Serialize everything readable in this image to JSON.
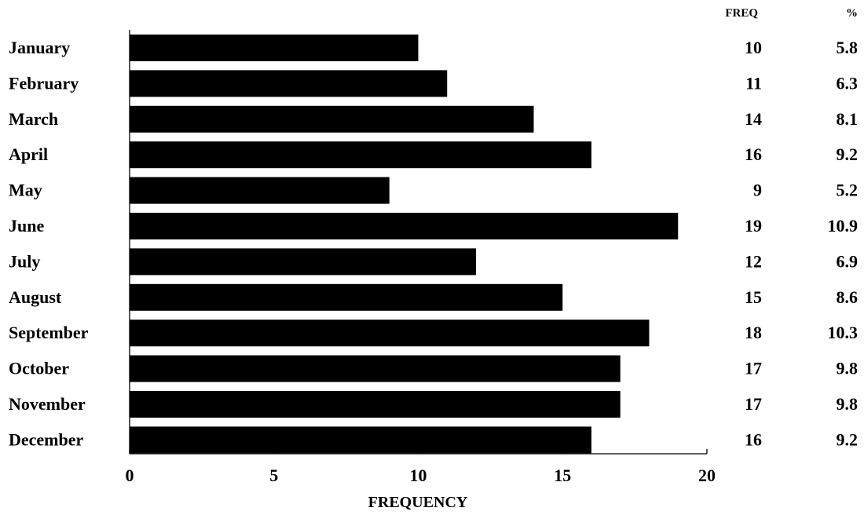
{
  "chart_data": {
    "type": "bar",
    "orientation": "horizontal",
    "categories": [
      "January",
      "February",
      "March",
      "April",
      "May",
      "June",
      "July",
      "August",
      "September",
      "October",
      "November",
      "December"
    ],
    "values": [
      10,
      11,
      14,
      16,
      9,
      19,
      12,
      15,
      18,
      17,
      17,
      16
    ],
    "percent": [
      "5.8",
      "6.3",
      "8.1",
      "9.2",
      "5.2",
      "10.9",
      "6.9",
      "8.6",
      "10.3",
      "9.8",
      "9.8",
      "9.2"
    ],
    "xlabel": "FREQUENCY",
    "ylabel": "",
    "xlim": [
      0,
      20
    ],
    "xticks": [
      0,
      5,
      10,
      15,
      20
    ],
    "table_headers": {
      "freq": "FREQ",
      "percent": "%"
    },
    "bar_color": "#000000",
    "grid": false
  }
}
